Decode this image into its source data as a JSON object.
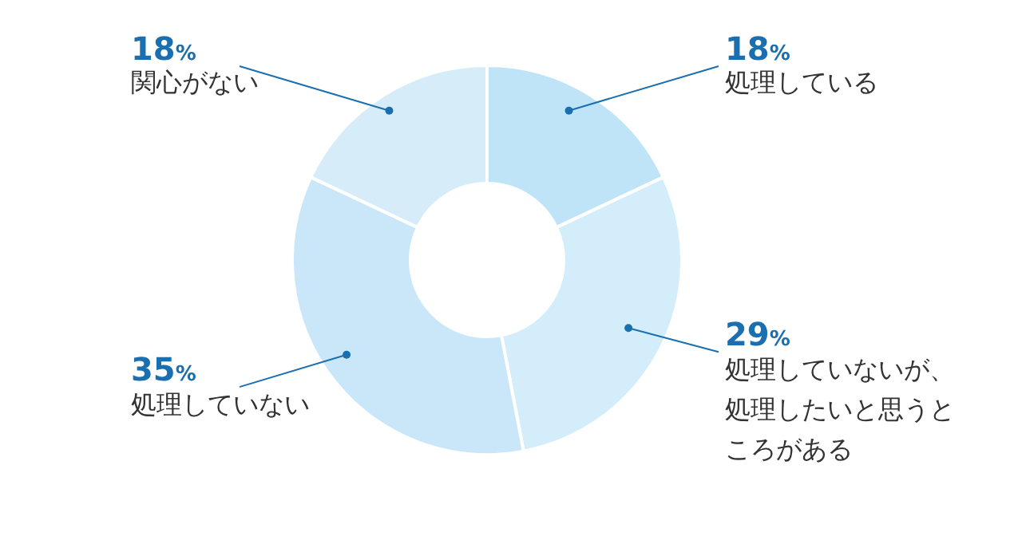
{
  "chart_data": {
    "type": "donut",
    "categories": [
      "処理している",
      "処理していないが、処理したいと思うところがある",
      "処理していない",
      "関心がない"
    ],
    "values": [
      18,
      29,
      35,
      18
    ],
    "value_labels": [
      "18%",
      "29%",
      "35%",
      "18%"
    ],
    "colors": [
      "#bfe4f8",
      "#d4edfa",
      "#c9e7f9",
      "#d6ecf9"
    ],
    "legend": false
  }
}
